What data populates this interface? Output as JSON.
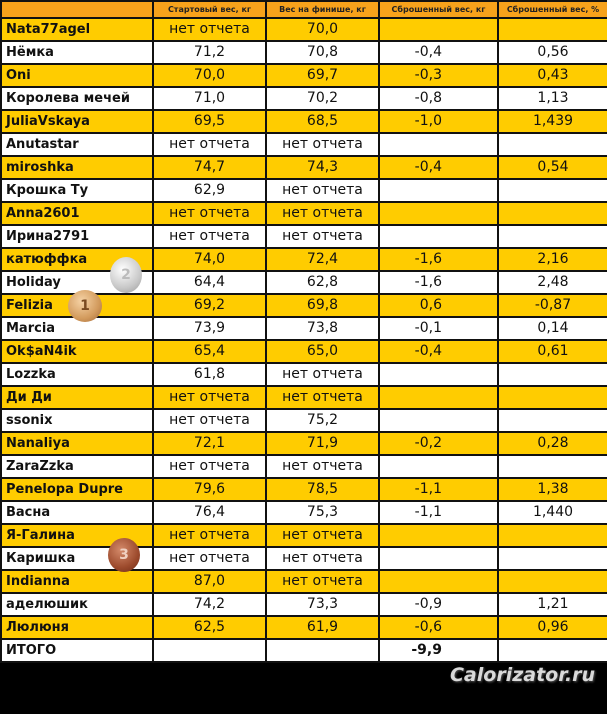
{
  "headers": [
    "",
    "Стартовый вес, кг",
    "Вес на финише, кг",
    "Сброшенный вес, кг",
    "Сброшенный вес, %"
  ],
  "rows": [
    [
      "Nata77agel",
      "нет отчета",
      "70,0",
      "",
      ""
    ],
    [
      "Нёмка",
      "71,2",
      "70,8",
      "-0,4",
      "0,56"
    ],
    [
      "Oni",
      "70,0",
      "69,7",
      "-0,3",
      "0,43"
    ],
    [
      "Королева мечей",
      "71,0",
      "70,2",
      "-0,8",
      "1,13"
    ],
    [
      "JuliaVskaya",
      "69,5",
      "68,5",
      "-1,0",
      "1,439"
    ],
    [
      "Anutastar",
      "нет отчета",
      "нет отчета",
      "",
      ""
    ],
    [
      "miroshka",
      "74,7",
      "74,3",
      "-0,4",
      "0,54"
    ],
    [
      "Крошка Ту",
      "62,9",
      "нет отчета",
      "",
      ""
    ],
    [
      "Anna2601",
      "нет отчета",
      "нет отчета",
      "",
      ""
    ],
    [
      "Ирина2791",
      "нет отчета",
      "нет отчета",
      "",
      ""
    ],
    [
      "катюффка",
      "74,0",
      "72,4",
      "-1,6",
      "2,16"
    ],
    [
      "Holiday",
      "64,4",
      "62,8",
      "-1,6",
      "2,48"
    ],
    [
      "Felizia",
      "69,2",
      "69,8",
      "0,6",
      "-0,87"
    ],
    [
      "Marcia",
      "73,9",
      "73,8",
      "-0,1",
      "0,14"
    ],
    [
      "Ok$aN4ik",
      "65,4",
      "65,0",
      "-0,4",
      "0,61"
    ],
    [
      "Lozzka",
      "61,8",
      "нет отчета",
      "",
      ""
    ],
    [
      "Ди Ди",
      "нет отчета",
      "нет отчета",
      "",
      ""
    ],
    [
      "ssonix",
      "нет отчета",
      "75,2",
      "",
      ""
    ],
    [
      "Nanaliya",
      "72,1",
      "71,9",
      "-0,2",
      "0,28"
    ],
    [
      "ZaraZzka",
      "нет отчета",
      "нет отчета",
      "",
      ""
    ],
    [
      "Penelopa Dupre",
      "79,6",
      "78,5",
      "-1,1",
      "1,38"
    ],
    [
      "Васна",
      "76,4",
      "75,3",
      "-1,1",
      "1,440"
    ],
    [
      "Я-Галина",
      "нет отчета",
      "нет отчета",
      "",
      ""
    ],
    [
      "Каришка",
      "нет отчета",
      "нет отчета",
      "",
      ""
    ],
    [
      "Indianna",
      "87,0",
      "нет отчета",
      "",
      ""
    ],
    [
      "аделюшик",
      "74,2",
      "73,3",
      "-0,9",
      "1,21"
    ],
    [
      "Люлюня",
      "62,5",
      "61,9",
      "-0,6",
      "0,96"
    ]
  ],
  "total": {
    "label": "ИТОГО",
    "value": "-9,9"
  },
  "medals": {
    "silver": "2",
    "gold": "1",
    "bronze": "3"
  },
  "watermark": "Calorizator.ru",
  "colors": {
    "header": "#f7a21b",
    "row_highlight": "#ffcc00",
    "row_plain": "#ffffff"
  }
}
